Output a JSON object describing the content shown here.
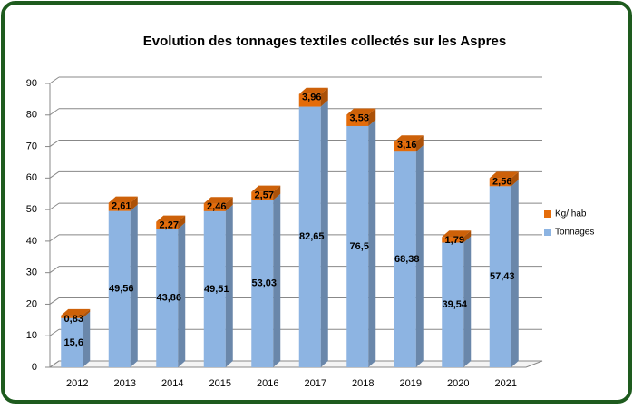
{
  "chart_data": {
    "type": "bar3d_stacked",
    "title": "Evolution des tonnages textiles collectés sur les Aspres",
    "categories": [
      "2012",
      "2013",
      "2014",
      "2015",
      "2016",
      "2017",
      "2018",
      "2019",
      "2020",
      "2021"
    ],
    "series": [
      {
        "name": "Tonnages",
        "color": "#8db4e2",
        "values": [
          15.6,
          49.56,
          43.86,
          49.51,
          53.03,
          82.65,
          76.5,
          68.38,
          39.54,
          57.43
        ],
        "value_labels": [
          "15,6",
          "49,56",
          "43,86",
          "49,51",
          "53,03",
          "82,65",
          "76,5",
          "68,38",
          "39,54",
          "57,43"
        ]
      },
      {
        "name": "Kg/ hab",
        "color": "#e46c0a",
        "values": [
          0.83,
          2.61,
          2.27,
          2.46,
          2.57,
          3.96,
          3.58,
          3.16,
          1.79,
          2.56
        ],
        "value_labels": [
          "0,83",
          "2,61",
          "2,27",
          "2,46",
          "2,57",
          "3,96",
          "3,58",
          "3,16",
          "1,79",
          "2,56"
        ]
      }
    ],
    "ylim": [
      0,
      90
    ],
    "yticks": [
      0,
      10,
      20,
      30,
      40,
      50,
      60,
      70,
      80,
      90
    ],
    "grid": true
  }
}
